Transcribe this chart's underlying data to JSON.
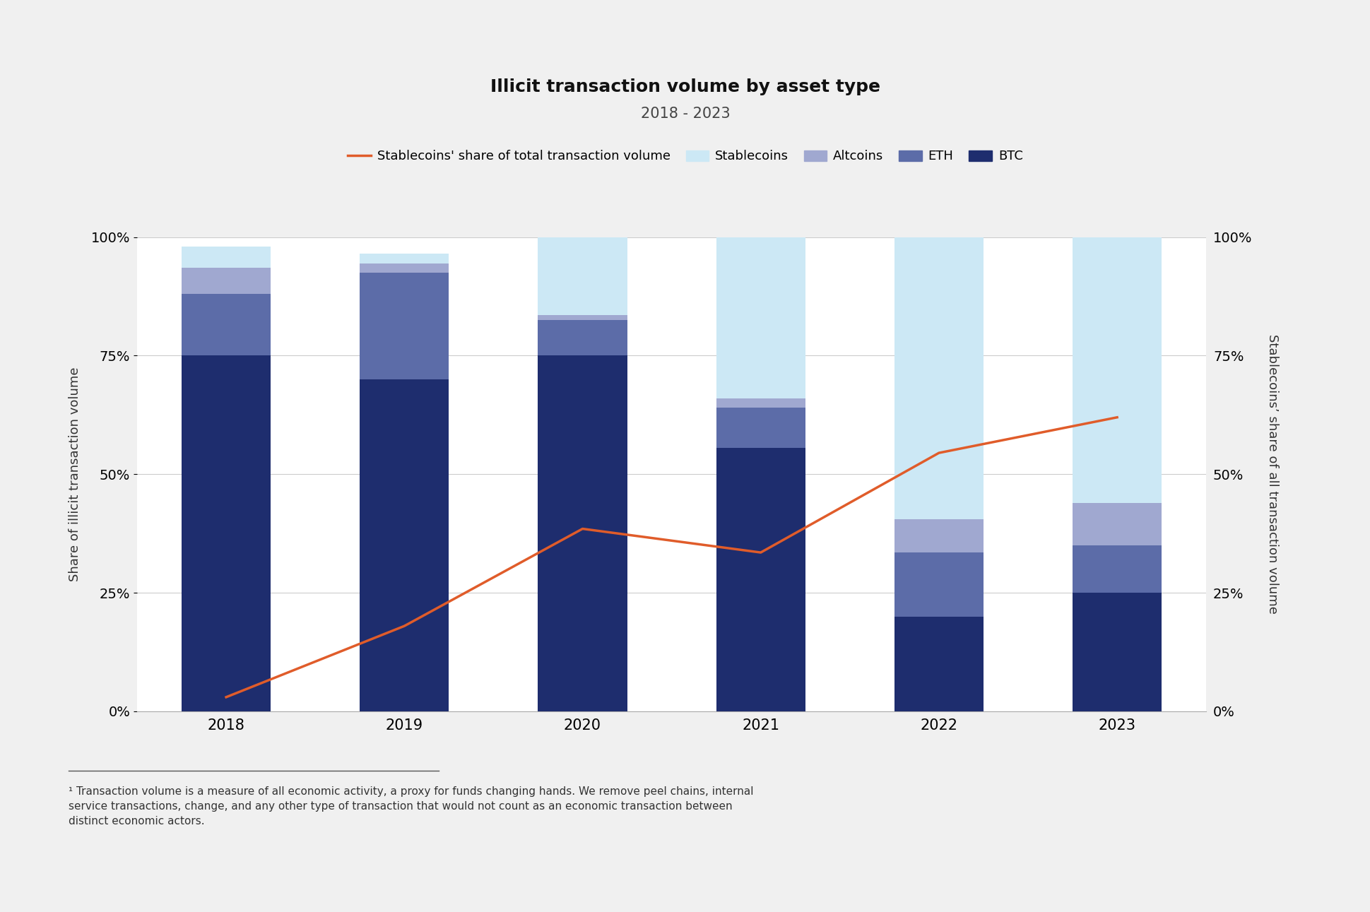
{
  "years": [
    2018,
    2019,
    2020,
    2021,
    2022,
    2023
  ],
  "btc": [
    0.75,
    0.7,
    0.75,
    0.555,
    0.2,
    0.25
  ],
  "eth": [
    0.13,
    0.225,
    0.075,
    0.085,
    0.135,
    0.1
  ],
  "altcoins": [
    0.055,
    0.02,
    0.01,
    0.02,
    0.07,
    0.09
  ],
  "stablecoins": [
    0.045,
    0.02,
    0.165,
    0.34,
    0.595,
    0.56
  ],
  "line_values": [
    0.03,
    0.18,
    0.385,
    0.335,
    0.545,
    0.62
  ],
  "btc_color": "#1e2d6e",
  "eth_color": "#5c6ca8",
  "altcoins_color": "#a0a8d0",
  "stablecoins_color": "#cce8f5",
  "line_color": "#e05c2a",
  "background_color": "#f0f0f0",
  "chart_bg_color": "#ffffff",
  "title": "Illicit transaction volume by asset type",
  "subtitle": "2018 - 2023",
  "ylabel_left": "Share of illicit transaction volume",
  "ylabel_right": "Stablecoins’ share of all transaction volume",
  "footnote": "¹ Transaction volume is a measure of all economic activity, a proxy for funds changing hands. We remove peel chains, internal\nservice transactions, change, and any other type of transaction that would not count as an economic transaction between\ndistinct economic actors."
}
